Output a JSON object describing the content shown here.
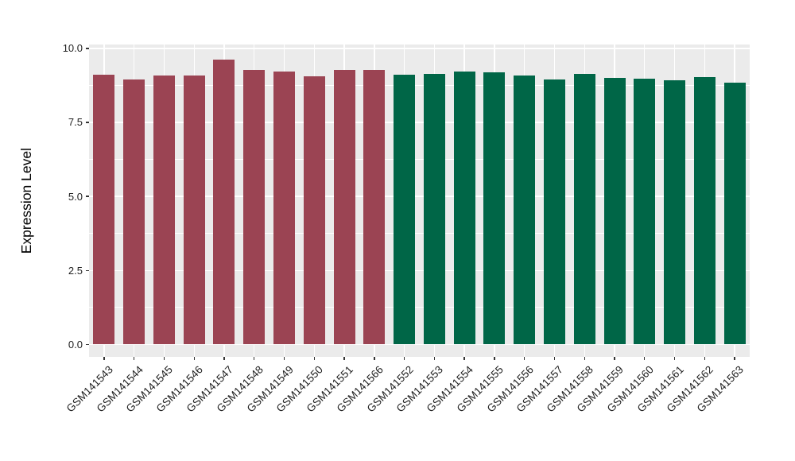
{
  "chart_data": {
    "type": "bar",
    "title": "",
    "xlabel": "",
    "ylabel": "Expression Level",
    "categories": [
      "GSM141543",
      "GSM141544",
      "GSM141545",
      "GSM141546",
      "GSM141547",
      "GSM141548",
      "GSM141549",
      "GSM141550",
      "GSM141551",
      "GSM141566",
      "GSM141552",
      "GSM141553",
      "GSM141554",
      "GSM141555",
      "GSM141556",
      "GSM141557",
      "GSM141558",
      "GSM141559",
      "GSM141560",
      "GSM141561",
      "GSM141562",
      "GSM141563"
    ],
    "values": [
      9.1,
      8.96,
      9.08,
      9.07,
      9.62,
      9.28,
      9.21,
      9.06,
      9.26,
      9.26,
      9.12,
      9.15,
      9.23,
      9.2,
      9.07,
      8.96,
      9.15,
      9.01,
      8.97,
      8.92,
      9.03,
      8.83
    ],
    "color_groups": [
      {
        "color": "#9B4453",
        "count": 10
      },
      {
        "color": "#006647",
        "count": 12
      }
    ],
    "ylim": [
      0,
      10
    ],
    "y_axis": {
      "major_breaks": [
        0,
        2.5,
        5,
        7.5,
        10
      ],
      "major_labels": [
        "0.0",
        "2.5",
        "5.0",
        "7.5",
        "10.0"
      ],
      "minor_breaks": [
        1.25,
        3.75,
        6.25,
        8.75
      ]
    },
    "x_label_angle": 45,
    "grid": "on",
    "legend_position": "none",
    "panel_background": "#EBEBEB",
    "grid_color": "#FFFFFF"
  }
}
